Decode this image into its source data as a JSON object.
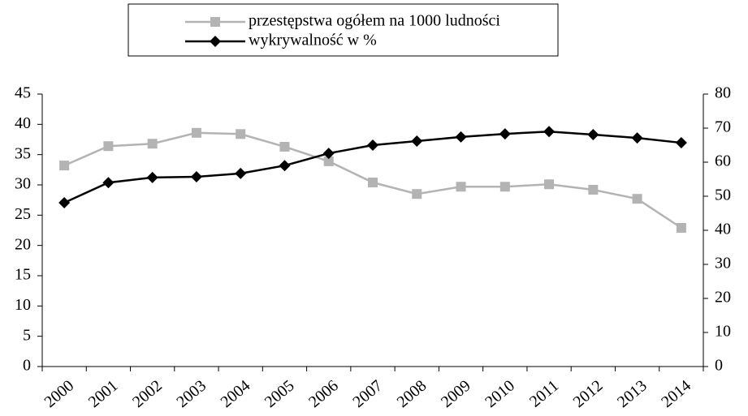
{
  "chart_data": {
    "type": "line",
    "categories": [
      "2000",
      "2001",
      "2002",
      "2003",
      "2004",
      "2005",
      "2006",
      "2007",
      "2008",
      "2009",
      "2010",
      "2011",
      "2012",
      "2013",
      "2014"
    ],
    "series": [
      {
        "name": "przestępstwa ogółem na 1000 ludności",
        "color": "#b3b3b3",
        "marker": "square",
        "axis": "y",
        "values": [
          33.2,
          36.4,
          36.8,
          38.6,
          38.4,
          36.3,
          33.9,
          30.4,
          28.5,
          29.7,
          29.7,
          30.1,
          29.2,
          27.7,
          22.9
        ]
      },
      {
        "name": "wykrywalność w %",
        "color": "#000000",
        "marker": "diamond",
        "axis": "y2",
        "values": [
          48.1,
          54.0,
          55.5,
          55.7,
          56.7,
          59.0,
          62.6,
          65.0,
          66.2,
          67.4,
          68.3,
          69.0,
          68.1,
          67.1,
          65.7
        ]
      }
    ],
    "ylim": [
      0,
      45
    ],
    "yticks": [
      0,
      5,
      10,
      15,
      20,
      25,
      30,
      35,
      40,
      45
    ],
    "y2lim": [
      0,
      80
    ],
    "y2ticks": [
      0,
      10,
      20,
      30,
      40,
      50,
      60,
      70,
      80
    ],
    "legend": "top"
  }
}
